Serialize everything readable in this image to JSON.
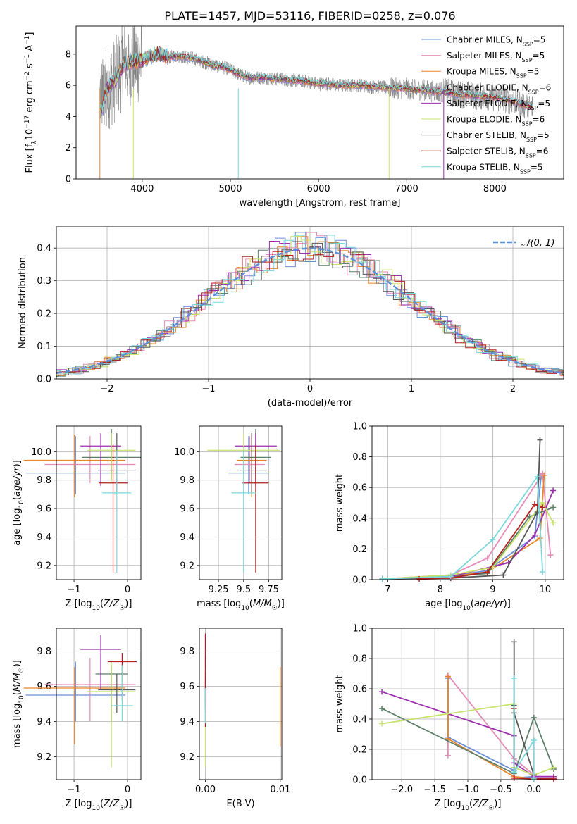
{
  "figure": {
    "title": "PLATE=1457, MJD=53116, FIBERID=0258, z=0.076"
  },
  "series_colors": [
    "#6a8fd8",
    "#e68ab8",
    "#e8852a",
    "#5c7f69",
    "#9b2fae",
    "#c7e36a",
    "#555555",
    "#b32020",
    "#7ad7db"
  ],
  "chart_data": [
    {
      "id": "spectrum",
      "type": "line",
      "title": "PLATE=1457, MJD=53116, FIBERID=0258, z=0.076",
      "xlabel": "wavelength [Angstrom, rest frame]",
      "ylabel": "Flux [f_λ 10^-17 erg cm^-2 s^-1 A^-1]",
      "xlim": [
        3250,
        8780
      ],
      "ylim": [
        0,
        9.8
      ],
      "xticks": [
        4000,
        5000,
        6000,
        7000,
        8000
      ],
      "yticks": [
        0,
        2,
        4,
        6,
        8
      ],
      "legend_position": "upper right",
      "legend": [
        {
          "label": "Chabrier MILES, N_SSP=5",
          "color": "#6a8fd8"
        },
        {
          "label": "Salpeter MILES, N_SSP=5",
          "color": "#e68ab8"
        },
        {
          "label": "Kroupa MILES, N_SSP=5",
          "color": "#e8852a"
        },
        {
          "label": "Chabrier ELODIE, N_SSP=6",
          "color": "#9b2fae"
        },
        {
          "label": "Salpeter ELODIE, N_SSP=5",
          "color": "#9b2fae"
        },
        {
          "label": "Kroupa ELODIE, N_SSP=6",
          "color": "#c7e36a"
        },
        {
          "label": "Chabrier STELIB, N_SSP=5",
          "color": "#555555"
        },
        {
          "label": "Salpeter STELIB, N_SSP=6",
          "color": "#b32020"
        },
        {
          "label": "Kroupa STELIB, N_SSP=5",
          "color": "#7ad7db"
        }
      ],
      "data_x": [
        3550,
        3600,
        3700,
        3800,
        3900,
        4000,
        4100,
        4200,
        4300,
        4400,
        4500,
        4600,
        4700,
        4800,
        4900,
        5000,
        5100,
        5200,
        5300,
        5400,
        5500,
        5600,
        5700,
        5800,
        5900,
        6000,
        6100,
        6200,
        6300,
        6400,
        6500,
        6600,
        6700,
        6800,
        6900,
        7000,
        7100,
        7200,
        7300,
        7400,
        7500,
        7600,
        7700,
        7800,
        7900,
        8000,
        8100,
        8200,
        8300,
        8400
      ],
      "model_flux": [
        4.5,
        5.8,
        6.4,
        7.4,
        7.5,
        7.6,
        7.9,
        8.0,
        7.8,
        7.9,
        7.8,
        7.7,
        7.5,
        7.3,
        7.2,
        7.0,
        6.7,
        6.5,
        6.5,
        6.5,
        6.4,
        6.4,
        6.3,
        6.3,
        6.2,
        6.1,
        6.1,
        6.0,
        6.0,
        6.0,
        6.0,
        5.9,
        5.9,
        5.8,
        5.8,
        5.8,
        5.7,
        5.7,
        5.6,
        5.6,
        5.5,
        5.4,
        5.4,
        5.3,
        5.3,
        5.2,
        5.1,
        5.0,
        4.8,
        4.6
      ],
      "observed_color": "#808080"
    },
    {
      "id": "residuals",
      "type": "line",
      "xlabel": "(data-model)/error",
      "ylabel": "Normed distribution",
      "xlim": [
        -2.5,
        2.5
      ],
      "ylim": [
        0,
        0.465
      ],
      "xticks": [
        -2,
        -1,
        0,
        1,
        2
      ],
      "yticks": [
        0.0,
        0.1,
        0.2,
        0.3,
        0.4
      ],
      "grid": true,
      "legend_position": "upper right",
      "legend": [
        {
          "label": "𝒩(0, 1)",
          "color": "#5b8fd6"
        }
      ],
      "gaussian": {
        "mean": 0,
        "sigma": 1
      }
    },
    {
      "id": "age-vs-Z",
      "type": "scatter",
      "xlabel": "Z [log10(Z/Z☉)]",
      "ylabel": "age  [log10(age/yr)]",
      "xlim": [
        -1.33,
        0.25
      ],
      "ylim": [
        9.1,
        10.18
      ],
      "xticks": [
        -1,
        0
      ],
      "yticks": [
        9.2,
        9.4,
        9.6,
        9.8,
        10.0
      ],
      "grid": true,
      "points": [
        {
          "x": -0.97,
          "y": 9.85,
          "xerr": 0.93,
          "yerr_lo": 0.15,
          "yerr_hi": 0.26,
          "color": "#6a8fd8"
        },
        {
          "x": -0.7,
          "y": 9.91,
          "xerr": 0.85,
          "yerr_lo": 0.13,
          "yerr_hi": 0.2,
          "color": "#e68ab8"
        },
        {
          "x": -0.99,
          "y": 9.94,
          "xerr": 0.95,
          "yerr_lo": 0.26,
          "yerr_hi": 0.18,
          "color": "#e8852a"
        },
        {
          "x": -0.3,
          "y": 9.96,
          "xerr": 0.55,
          "yerr_lo": 0.16,
          "yerr_hi": 0.2,
          "color": "#5c7f69"
        },
        {
          "x": -0.5,
          "y": 10.04,
          "xerr": 0.38,
          "yerr_lo": 0.28,
          "yerr_hi": 0.09,
          "color": "#9b2fae"
        },
        {
          "x": -0.3,
          "y": 10.01,
          "xerr": 0.45,
          "yerr_lo": 0.22,
          "yerr_hi": 0.12,
          "color": "#c7e36a"
        },
        {
          "x": -0.2,
          "y": 9.87,
          "xerr": 0.35,
          "yerr_lo": 0.17,
          "yerr_hi": 0.26,
          "color": "#555555"
        },
        {
          "x": -0.27,
          "y": 9.78,
          "xerr": 0.27,
          "yerr_lo": 0.63,
          "yerr_hi": 0.27,
          "color": "#b32020"
        },
        {
          "x": -0.2,
          "y": 9.71,
          "xerr": 0.27,
          "yerr_lo": 0.56,
          "yerr_hi": 0.3,
          "color": "#7ad7db"
        }
      ]
    },
    {
      "id": "age-vs-mass",
      "type": "scatter",
      "xlabel": "mass [log10(M/M☉)]",
      "ylabel": "",
      "xlim": [
        9.06,
        9.88
      ],
      "ylim": [
        9.1,
        10.18
      ],
      "xticks": [
        9.25,
        9.5,
        9.75
      ],
      "yticks": [
        9.2,
        9.4,
        9.6,
        9.8,
        10.0
      ],
      "grid": true,
      "points": [
        {
          "x": 9.55,
          "y": 9.85,
          "xerr": 0.2,
          "yerr_lo": 0.15,
          "yerr_hi": 0.26,
          "color": "#6a8fd8"
        },
        {
          "x": 9.56,
          "y": 9.91,
          "xerr": 0.15,
          "yerr_lo": 0.13,
          "yerr_hi": 0.2,
          "color": "#e68ab8"
        },
        {
          "x": 9.58,
          "y": 9.94,
          "xerr": 0.15,
          "yerr_lo": 0.26,
          "yerr_hi": 0.18,
          "color": "#e8852a"
        },
        {
          "x": 9.62,
          "y": 9.96,
          "xerr": 0.15,
          "yerr_lo": 0.16,
          "yerr_hi": 0.2,
          "color": "#5c7f69"
        },
        {
          "x": 9.62,
          "y": 10.04,
          "xerr": 0.21,
          "yerr_lo": 0.28,
          "yerr_hi": 0.09,
          "color": "#9b2fae"
        },
        {
          "x": 9.5,
          "y": 10.01,
          "xerr": 0.36,
          "yerr_lo": 0.22,
          "yerr_hi": 0.12,
          "color": "#c7e36a"
        },
        {
          "x": 9.58,
          "y": 9.87,
          "xerr": 0.14,
          "yerr_lo": 0.17,
          "yerr_hi": 0.26,
          "color": "#555555"
        },
        {
          "x": 9.62,
          "y": 9.78,
          "xerr": 0.13,
          "yerr_lo": 0.63,
          "yerr_hi": 0.27,
          "color": "#b32020"
        },
        {
          "x": 9.5,
          "y": 9.71,
          "xerr": 0.12,
          "yerr_lo": 0.56,
          "yerr_hi": 0.3,
          "color": "#7ad7db"
        }
      ]
    },
    {
      "id": "weight-vs-age",
      "type": "line",
      "xlabel": "age  [log10(age/yr)]",
      "ylabel": "mass weight",
      "xlim": [
        6.7,
        10.35
      ],
      "ylim": [
        0,
        1.0
      ],
      "xticks": [
        7,
        8,
        9,
        10
      ],
      "yticks": [
        0.0,
        0.2,
        0.4,
        0.6,
        0.8,
        1.0
      ],
      "grid": true,
      "series": [
        {
          "color": "#6a8fd8",
          "x": [
            6.9,
            8.2,
            8.9,
            9.8,
            9.92
          ],
          "y": [
            0.005,
            0.02,
            0.06,
            0.28,
            0.67
          ]
        },
        {
          "color": "#e68ab8",
          "x": [
            6.9,
            8.2,
            8.9,
            9.95,
            10.1
          ],
          "y": [
            0.005,
            0.03,
            0.14,
            0.69,
            0.16
          ]
        },
        {
          "color": "#e8852a",
          "x": [
            6.9,
            8.2,
            8.9,
            9.9,
            9.98
          ],
          "y": [
            0.005,
            0.02,
            0.05,
            0.27,
            0.68
          ]
        },
        {
          "color": "#5c7f69",
          "x": [
            6.9,
            8.2,
            8.9,
            9.7,
            10.15
          ],
          "y": [
            0.005,
            0.02,
            0.04,
            0.41,
            0.47
          ]
        },
        {
          "color": "#9b2fae",
          "x": [
            6.9,
            8.2,
            9.3,
            9.8,
            10.15
          ],
          "y": [
            0.005,
            0.02,
            0.11,
            0.29,
            0.58
          ]
        },
        {
          "color": "#c7e36a",
          "x": [
            6.9,
            8.2,
            9.0,
            9.95,
            10.15
          ],
          "y": [
            0.005,
            0.03,
            0.08,
            0.5,
            0.37
          ]
        },
        {
          "color": "#555555",
          "x": [
            6.9,
            8.2,
            9.2,
            9.85,
            9.9
          ],
          "y": [
            0.005,
            0.01,
            0.03,
            0.44,
            0.91
          ]
        },
        {
          "color": "#b32020",
          "x": [
            7.6,
            8.2,
            8.9,
            9.8,
            9.95
          ],
          "y": [
            0.005,
            0.01,
            0.05,
            0.49,
            0.47
          ]
        },
        {
          "color": "#7ad7db",
          "x": [
            6.9,
            8.2,
            9.0,
            9.85,
            9.95
          ],
          "y": [
            0.005,
            0.02,
            0.26,
            0.67,
            0.05
          ]
        }
      ]
    },
    {
      "id": "mass-vs-Z",
      "type": "scatter",
      "xlabel": "Z [log10(Z/Z☉)]",
      "ylabel": "mass [log10(M/M☉)]",
      "xlim": [
        -1.33,
        0.25
      ],
      "ylim": [
        9.07,
        9.93
      ],
      "xticks": [
        -1,
        0
      ],
      "yticks": [
        9.2,
        9.4,
        9.6,
        9.8
      ],
      "grid": true,
      "points": [
        {
          "x": -0.97,
          "y": 9.55,
          "xerr": 0.93,
          "yerr_lo": 0.15,
          "yerr_hi": 0.19,
          "color": "#6a8fd8"
        },
        {
          "x": -0.7,
          "y": 9.61,
          "xerr": 0.85,
          "yerr_lo": 0.21,
          "yerr_hi": 0.15,
          "color": "#e68ab8"
        },
        {
          "x": -0.99,
          "y": 9.59,
          "xerr": 0.95,
          "yerr_lo": 0.32,
          "yerr_hi": 0.12,
          "color": "#e8852a"
        },
        {
          "x": -0.3,
          "y": 9.67,
          "xerr": 0.3,
          "yerr_lo": 0.27,
          "yerr_hi": 0.05,
          "color": "#5c7f69"
        },
        {
          "x": -0.5,
          "y": 9.81,
          "xerr": 0.38,
          "yerr_lo": 0.23,
          "yerr_hi": 0.08,
          "color": "#9b2fae"
        },
        {
          "x": -0.3,
          "y": 9.57,
          "xerr": 0.45,
          "yerr_lo": 0.43,
          "yerr_hi": 0.17,
          "color": "#c7e36a"
        },
        {
          "x": -0.2,
          "y": 9.58,
          "xerr": 0.35,
          "yerr_lo": 0.13,
          "yerr_hi": 0.09,
          "color": "#555555"
        },
        {
          "x": -0.1,
          "y": 9.74,
          "xerr": 0.27,
          "yerr_lo": 0.22,
          "yerr_hi": 0.05,
          "color": "#b32020"
        },
        {
          "x": -0.1,
          "y": 9.49,
          "xerr": 0.2,
          "yerr_lo": 0.09,
          "yerr_hi": 0.23,
          "color": "#7ad7db"
        }
      ]
    },
    {
      "id": "mass-vs-EBV",
      "type": "scatter",
      "xlabel": "E(B-V)",
      "ylabel": "",
      "xlim": [
        -0.0008,
        0.0102
      ],
      "ylim": [
        9.07,
        9.93
      ],
      "xticks": [
        0.0,
        0.01
      ],
      "xtick_labels": [
        "0.00",
        "0.01"
      ],
      "yticks": [
        9.2,
        9.4,
        9.6,
        9.8
      ],
      "grid": true,
      "points": [
        {
          "x": 0.0,
          "y": 9.55,
          "yerr_lo": 0.1,
          "yerr_hi": 0.1,
          "color": "#6a8fd8"
        },
        {
          "x": 0.0,
          "y": 9.61,
          "yerr_lo": 0.1,
          "yerr_hi": 0.1,
          "color": "#e68ab8"
        },
        {
          "x": 0.01,
          "y": 9.49,
          "yerr_lo": 0.23,
          "yerr_hi": 0.22,
          "color": "#e8852a"
        },
        {
          "x": 0.0,
          "y": 9.67,
          "yerr_lo": 0.1,
          "yerr_hi": 0.1,
          "color": "#5c7f69"
        },
        {
          "x": 0.0,
          "y": 9.81,
          "yerr_lo": 0.1,
          "yerr_hi": 0.08,
          "color": "#9b2fae"
        },
        {
          "x": 0.0,
          "y": 9.3,
          "yerr_lo": 0.16,
          "yerr_hi": 0.14,
          "color": "#c7e36a"
        },
        {
          "x": 0.0,
          "y": 9.58,
          "yerr_lo": 0.1,
          "yerr_hi": 0.1,
          "color": "#555555"
        },
        {
          "x": 0.0,
          "y": 9.5,
          "yerr_lo": 0.13,
          "yerr_hi": 0.4,
          "color": "#b32020"
        },
        {
          "x": 0.0,
          "y": 9.49,
          "yerr_lo": 0.1,
          "yerr_hi": 0.1,
          "color": "#7ad7db"
        }
      ]
    },
    {
      "id": "weight-vs-Z",
      "type": "line",
      "xlabel": "Z [log10(Z/Z☉)]",
      "ylabel": "mass weight",
      "xlim": [
        -2.45,
        0.45
      ],
      "ylim": [
        0,
        1.0
      ],
      "xticks": [
        -2.0,
        -1.5,
        -1.0,
        -0.5,
        0.0
      ],
      "xtick_labels": [
        "−2.0",
        "−1.5",
        "−1.0",
        "−0.5",
        "0.0"
      ],
      "yticks": [
        0.0,
        0.2,
        0.4,
        0.6,
        0.8,
        1.0
      ],
      "grid": true,
      "series": [
        {
          "color": "#6a8fd8",
          "x": [
            -1.3,
            -1.3,
            -0.3,
            -0.3,
            0.0
          ],
          "y": [
            0.67,
            0.28,
            0.06,
            0.01,
            0.02
          ]
        },
        {
          "color": "#e68ab8",
          "x": [
            -1.3,
            -1.3,
            -0.3,
            0.0,
            0.0
          ],
          "y": [
            0.16,
            0.69,
            0.14,
            0.03,
            0.005
          ]
        },
        {
          "color": "#e8852a",
          "x": [
            -1.3,
            -1.3,
            -0.3,
            0.0
          ],
          "y": [
            0.68,
            0.27,
            0.02,
            0.005
          ]
        },
        {
          "color": "#5c7f69",
          "x": [
            -2.3,
            -0.3,
            0.0,
            0.3
          ],
          "y": [
            0.47,
            0.04,
            0.41,
            0.07
          ]
        },
        {
          "color": "#9b2fae",
          "x": [
            -2.3,
            -0.3,
            -0.3,
            0.0,
            0.3
          ],
          "y": [
            0.58,
            0.29,
            0.11,
            0.02,
            0.02
          ]
        },
        {
          "color": "#c7e36a",
          "x": [
            -2.3,
            -0.3,
            -0.3,
            0.0,
            0.3
          ],
          "y": [
            0.37,
            0.5,
            0.08,
            0.03,
            0.08
          ]
        },
        {
          "color": "#555555",
          "x": [
            -0.3,
            -0.3,
            -0.3,
            0.0,
            0.0
          ],
          "y": [
            0.91,
            0.49,
            0.44,
            0.03,
            0.01
          ]
        },
        {
          "color": "#b32020",
          "x": [
            -0.3,
            -0.3,
            0.0,
            0.3
          ],
          "y": [
            0.47,
            0.01,
            0.005,
            0.005
          ]
        },
        {
          "color": "#7ad7db",
          "x": [
            -0.3,
            -0.3,
            0.0,
            0.0
          ],
          "y": [
            0.67,
            0.05,
            0.26,
            0.005
          ]
        }
      ]
    }
  ]
}
